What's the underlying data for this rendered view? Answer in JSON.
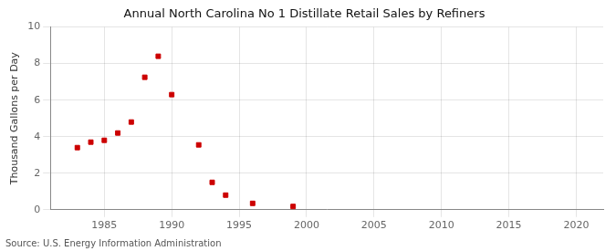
{
  "chart_data": {
    "type": "scatter",
    "title": "Annual North Carolina No 1 Distillate Retail Sales by Refiners",
    "ylabel": "Thousand Gallons per Day",
    "annotations": [
      "Source: U.S. Energy Information Administration"
    ],
    "x": [
      1983,
      1984,
      1985,
      1986,
      1987,
      1988,
      1989,
      1990,
      1992,
      1993,
      1994,
      1996,
      1999
    ],
    "values": [
      3.4,
      3.7,
      3.8,
      4.2,
      4.8,
      7.25,
      8.4,
      6.3,
      3.55,
      1.5,
      0.8,
      0.35,
      0.18
    ],
    "color": "#cc0000",
    "marker": "square",
    "xlim": [
      1981,
      2022
    ],
    "ylim": [
      0,
      10
    ],
    "xticks": [
      1985,
      1990,
      1995,
      2000,
      2005,
      2010,
      2015,
      2020
    ],
    "yticks": [
      0,
      2,
      4,
      6,
      8,
      10
    ],
    "grid": true
  }
}
